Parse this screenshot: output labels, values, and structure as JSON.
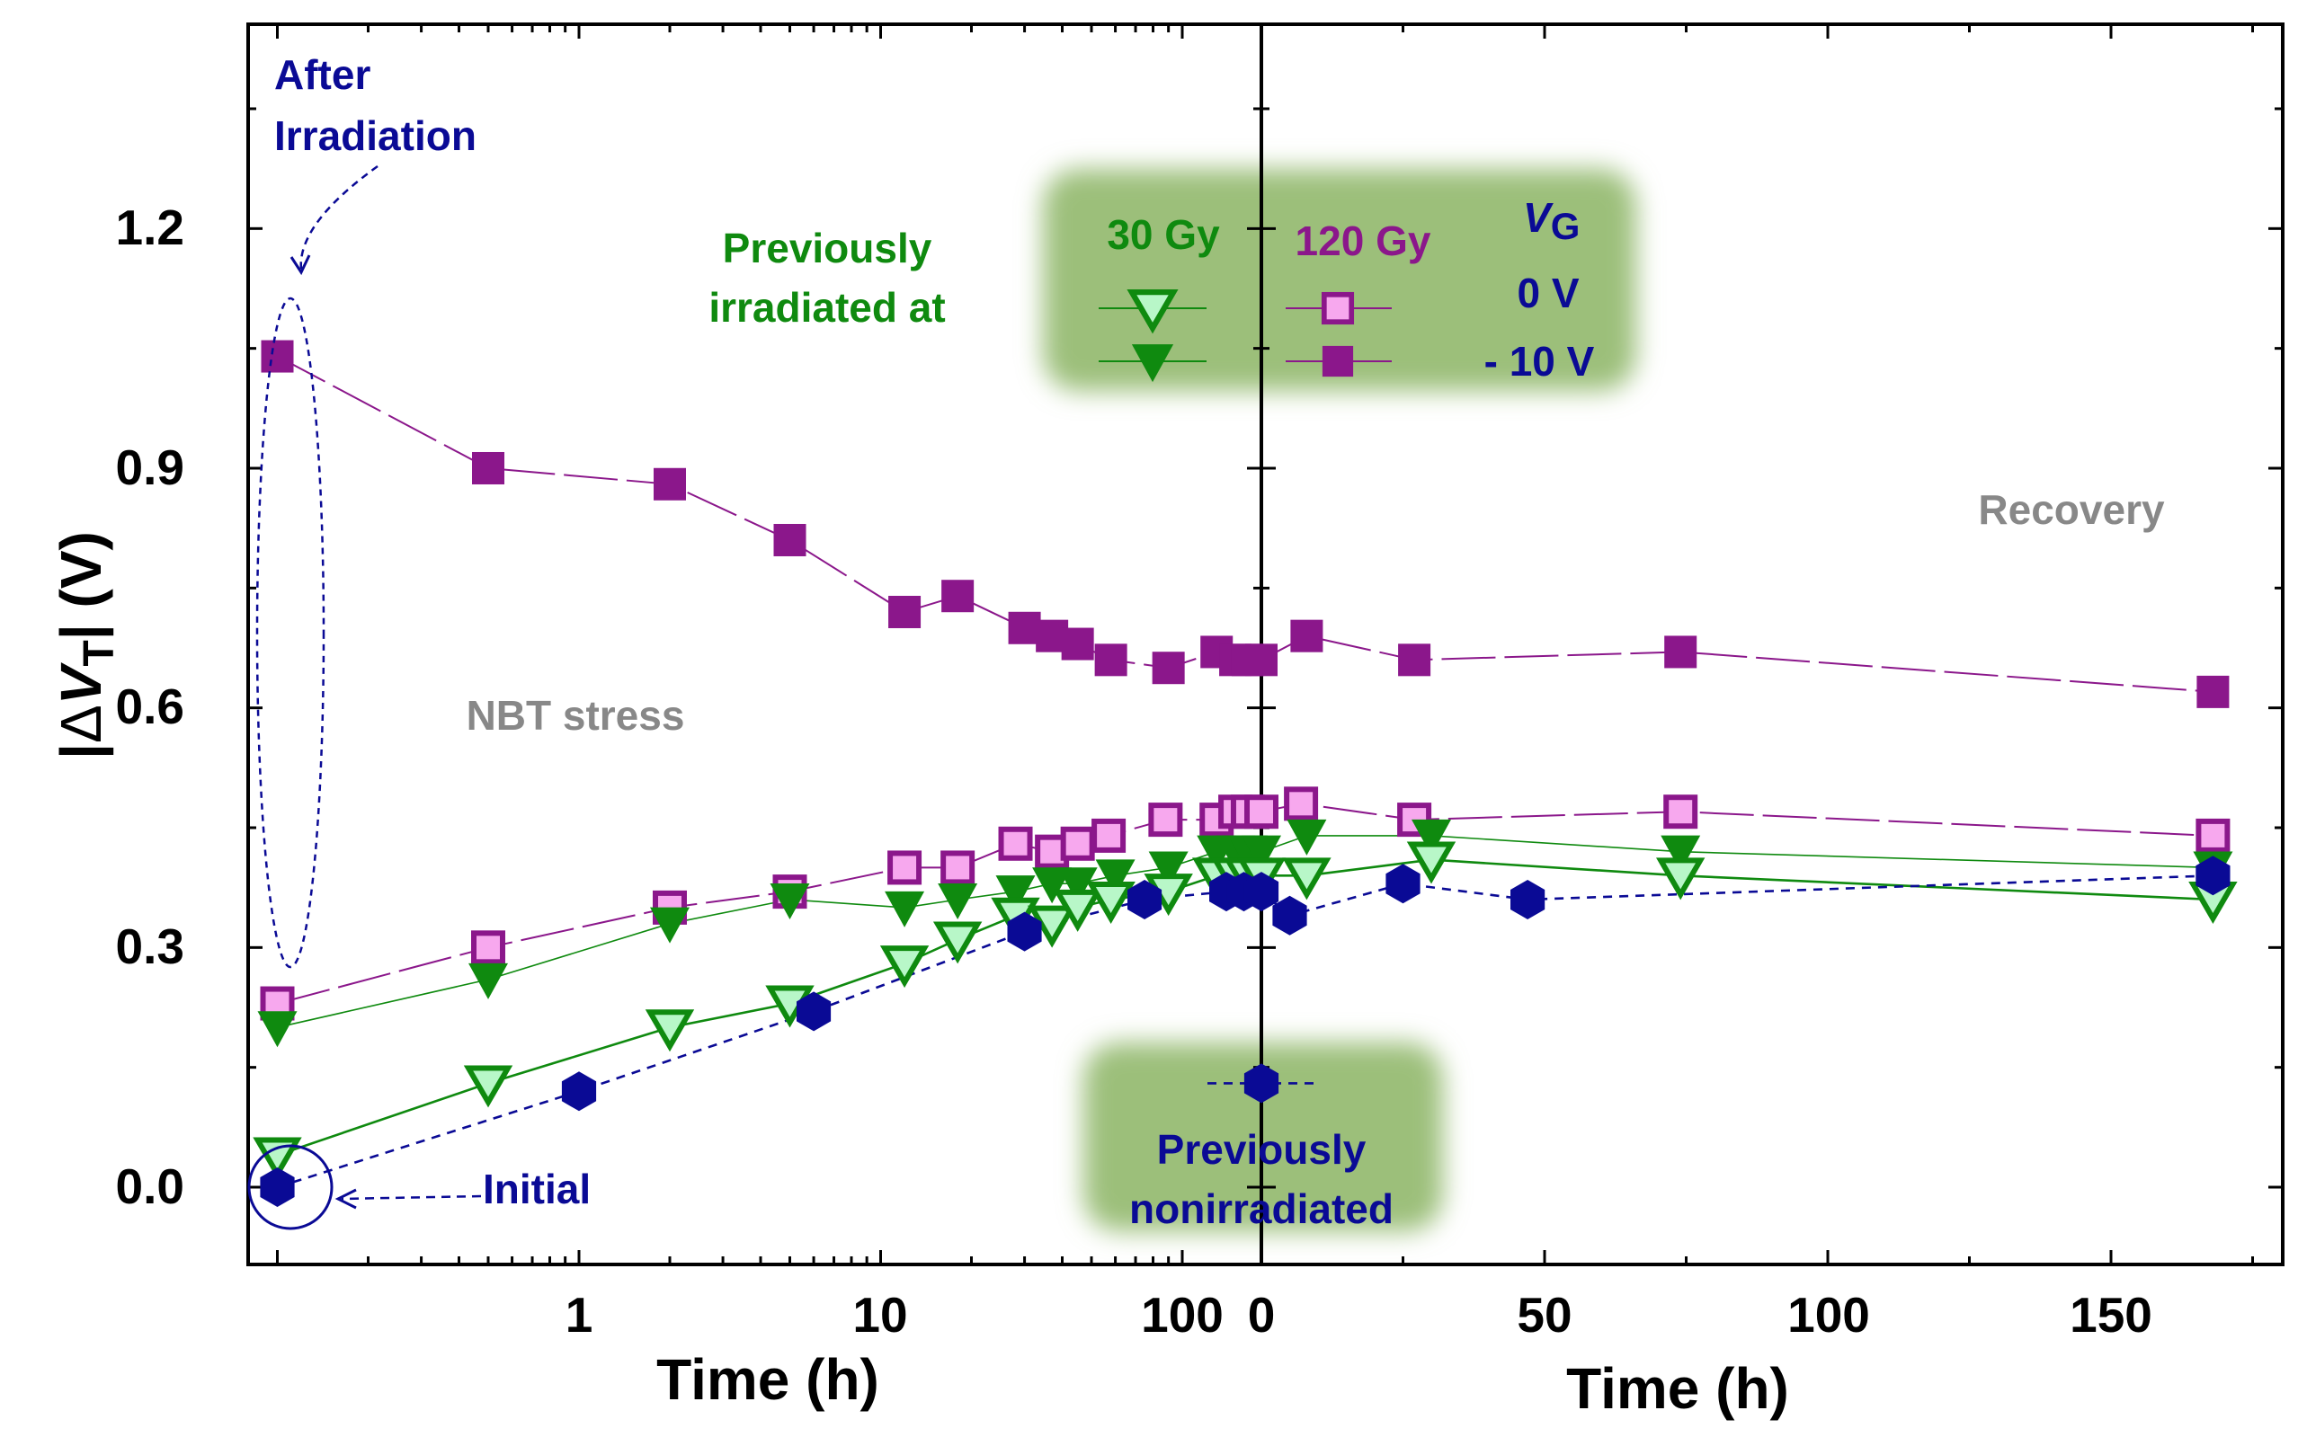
{
  "colors": {
    "purple": "#8b178b",
    "pink": "#f7a8ee",
    "green": "#0f8a0f",
    "lightgreen": "#b8f7c8",
    "navy": "#0a0a95",
    "gray": "#888888",
    "legend_bg": "#9cbf7a"
  },
  "chart_data": {
    "type": "scatter",
    "ylabel": "|ΔVT| (V)",
    "ylabel_parts": {
      "left": "|",
      "delta": "Δ",
      "v": "V",
      "sub": "T",
      "right": "| (V)"
    },
    "ylim": [
      -0.11,
      1.44
    ],
    "yticks": [
      "0.0",
      "0.3",
      "0.6",
      "0.9",
      "1.2"
    ],
    "yticks_values": [
      0.0,
      0.3,
      0.6,
      0.9,
      1.2
    ],
    "panels": [
      {
        "name": "NBT stress",
        "xlabel": "Time (h)",
        "xscale": "log",
        "xticks": [
          "1",
          "10",
          "100"
        ],
        "xticks_values": [
          1,
          10,
          100
        ],
        "annotation": "NBT stress"
      },
      {
        "name": "Recovery",
        "xlabel": "Time (h)",
        "xscale": "linear",
        "xlim": [
          -2,
          180
        ],
        "xticks": [
          "0",
          "50",
          "100",
          "150"
        ],
        "xticks_values": [
          0,
          50,
          100,
          150
        ],
        "annotation": "Recovery"
      }
    ],
    "series": [
      {
        "name": "120 Gy, VG = -10 V",
        "marker": "square-filled",
        "line": "dash-long",
        "color": "purple",
        "stress": [
          [
            0.1,
            1.04
          ],
          [
            0.5,
            0.9
          ],
          [
            2,
            0.88
          ],
          [
            5,
            0.81
          ],
          [
            12,
            0.72
          ],
          [
            18,
            0.74
          ],
          [
            30,
            0.7
          ],
          [
            37,
            0.69
          ],
          [
            45,
            0.68
          ],
          [
            58,
            0.66
          ],
          [
            90,
            0.65
          ],
          [
            130,
            0.67
          ],
          [
            150,
            0.66
          ],
          [
            165,
            0.66
          ]
        ],
        "recovery": [
          [
            0,
            0.66
          ],
          [
            8,
            0.69
          ],
          [
            27,
            0.66
          ],
          [
            74,
            0.67
          ],
          [
            168,
            0.62
          ]
        ]
      },
      {
        "name": "120 Gy, VG = 0 V",
        "marker": "square-open",
        "line": "dash-long",
        "color": "purple",
        "stress": [
          [
            0.1,
            0.23
          ],
          [
            0.5,
            0.3
          ],
          [
            2,
            0.35
          ],
          [
            5,
            0.37
          ],
          [
            12,
            0.4
          ],
          [
            18,
            0.4
          ],
          [
            28,
            0.43
          ],
          [
            37,
            0.42
          ],
          [
            45,
            0.43
          ],
          [
            57,
            0.44
          ],
          [
            88,
            0.46
          ],
          [
            130,
            0.46
          ],
          [
            150,
            0.47
          ],
          [
            165,
            0.47
          ]
        ],
        "recovery": [
          [
            0,
            0.47
          ],
          [
            7,
            0.48
          ],
          [
            27,
            0.46
          ],
          [
            74,
            0.47
          ],
          [
            168,
            0.44
          ]
        ]
      },
      {
        "name": "30 Gy, VG = -10 V",
        "marker": "triangle-down-filled",
        "line": "solid-thin",
        "color": "green",
        "stress": [
          [
            0.1,
            0.2
          ],
          [
            0.5,
            0.26
          ],
          [
            2,
            0.33
          ],
          [
            5,
            0.36
          ],
          [
            12,
            0.35
          ],
          [
            18,
            0.36
          ],
          [
            28,
            0.37
          ],
          [
            37,
            0.38
          ],
          [
            45,
            0.38
          ],
          [
            60,
            0.39
          ],
          [
            90,
            0.4
          ],
          [
            130,
            0.42
          ],
          [
            150,
            0.42
          ],
          [
            165,
            0.42
          ]
        ],
        "recovery": [
          [
            0,
            0.42
          ],
          [
            8,
            0.44
          ],
          [
            30,
            0.44
          ],
          [
            74,
            0.42
          ],
          [
            168,
            0.4
          ]
        ]
      },
      {
        "name": "30 Gy, VG = 0 V",
        "marker": "triangle-down-open",
        "line": "solid",
        "color": "green",
        "stress": [
          [
            0.1,
            0.04
          ],
          [
            0.5,
            0.13
          ],
          [
            2,
            0.2
          ],
          [
            5,
            0.23
          ],
          [
            12,
            0.28
          ],
          [
            18,
            0.31
          ],
          [
            28,
            0.34
          ],
          [
            37,
            0.33
          ],
          [
            45,
            0.35
          ],
          [
            58,
            0.36
          ],
          [
            90,
            0.37
          ],
          [
            130,
            0.39
          ],
          [
            150,
            0.39
          ],
          [
            165,
            0.39
          ]
        ],
        "recovery": [
          [
            0,
            0.39
          ],
          [
            8,
            0.39
          ],
          [
            30,
            0.41
          ],
          [
            74,
            0.39
          ],
          [
            168,
            0.36
          ]
        ]
      },
      {
        "name": "Previously nonirradiated",
        "marker": "hexagon-filled",
        "line": "dash",
        "color": "navy",
        "stress": [
          [
            0.1,
            0.0
          ],
          [
            1,
            0.12
          ],
          [
            6,
            0.22
          ],
          [
            30,
            0.32
          ],
          [
            75,
            0.36
          ],
          [
            140,
            0.37
          ],
          [
            160,
            0.37
          ]
        ],
        "recovery": [
          [
            0,
            0.37
          ],
          [
            5,
            0.34
          ],
          [
            25,
            0.38
          ],
          [
            47,
            0.36
          ],
          [
            168,
            0.39
          ]
        ],
        "extra_points": [
          [
            0,
            0.13
          ]
        ]
      }
    ],
    "legend": {
      "header": {
        "dose1": "30 Gy",
        "dose2": "120 Gy",
        "vg": "V",
        "vg_sub": "G"
      },
      "rows": [
        {
          "vg": "0 V"
        },
        {
          "vg": "- 10 V"
        }
      ],
      "side_label_1": "Previously",
      "side_label_2": "irradiated at",
      "placement": "top-center"
    },
    "annotations": {
      "after_irradiation_1": "After",
      "after_irradiation_2": "Irradiation",
      "initial": "Initial",
      "nonirradiated_1": "Previously",
      "nonirradiated_2": "nonirradiated"
    }
  }
}
